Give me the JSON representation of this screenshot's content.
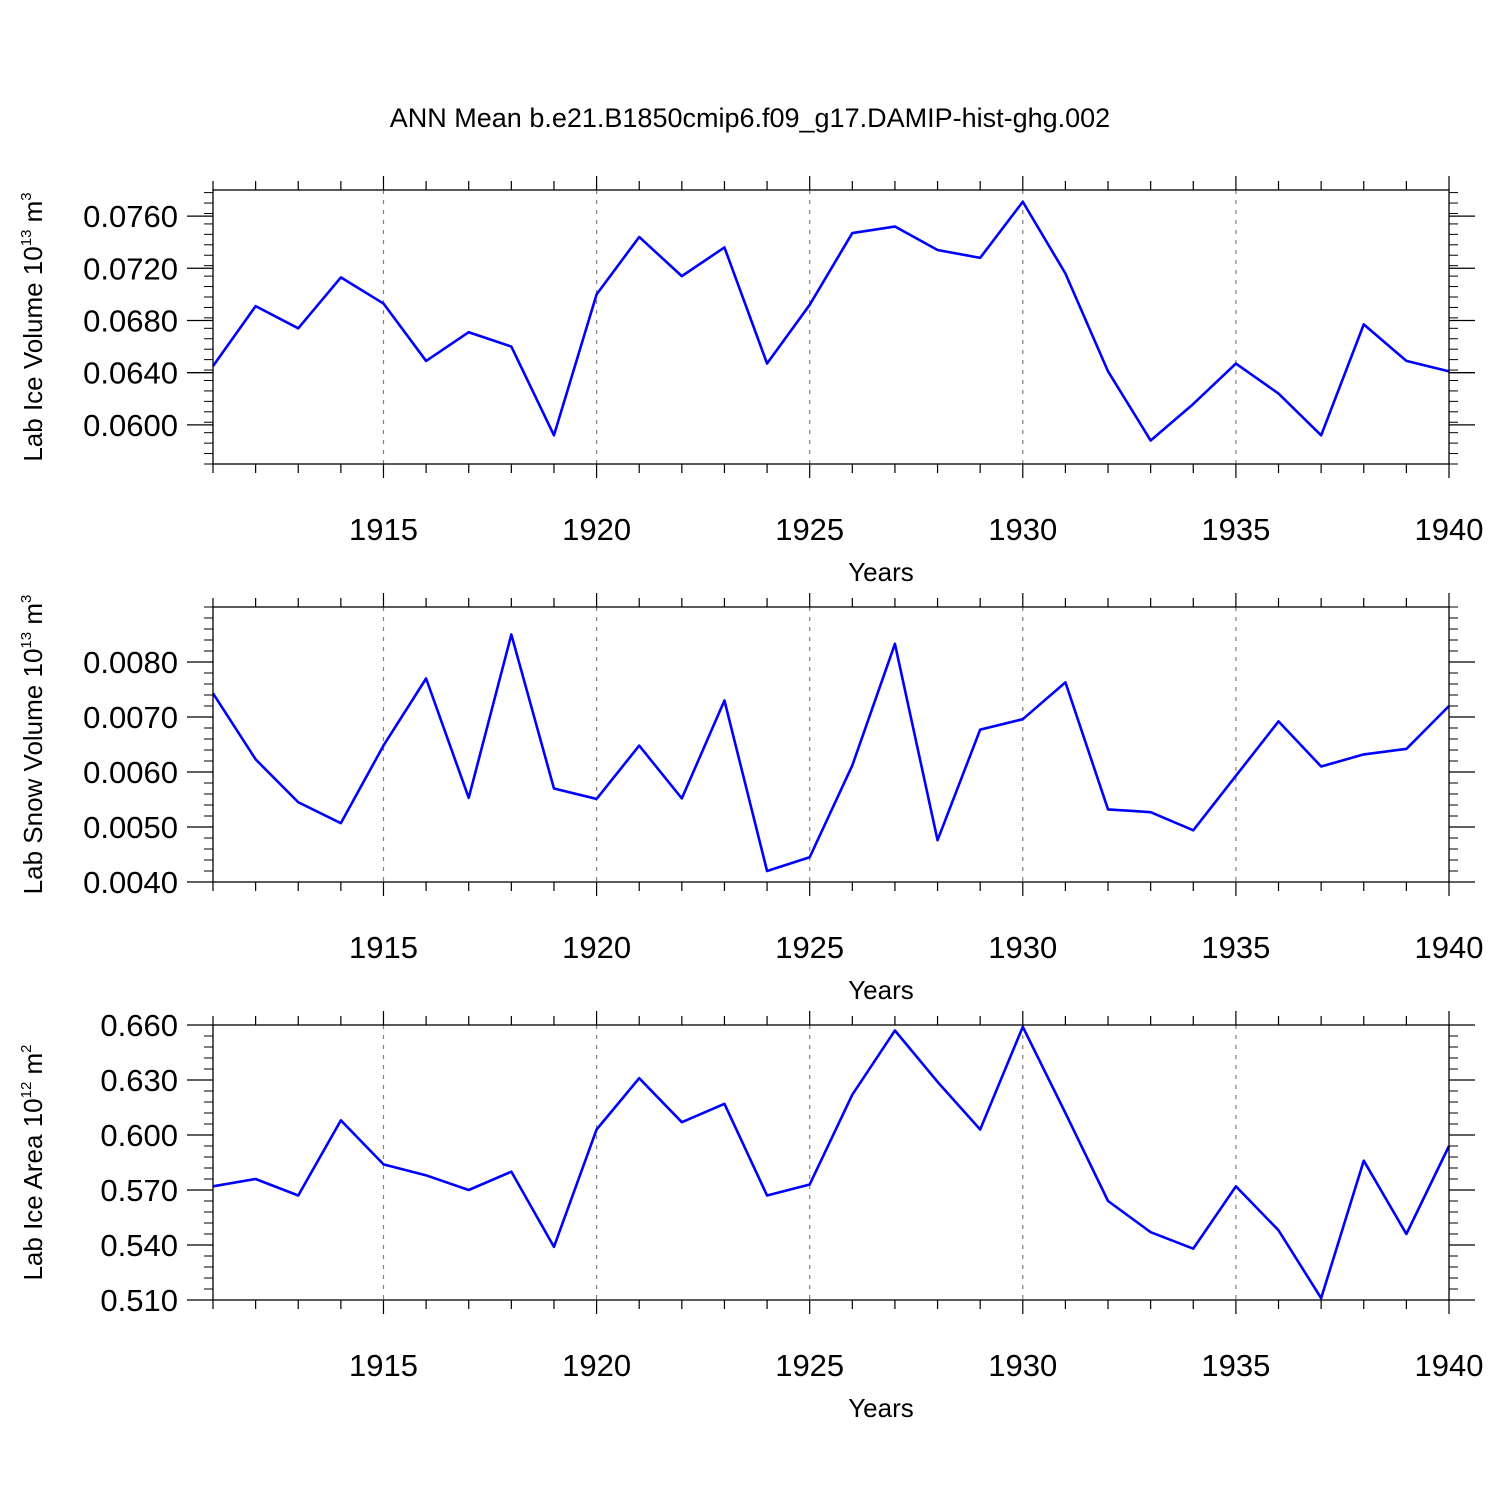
{
  "title": "ANN Mean b.e21.B1850cmip6.f09_g17.DAMIP-hist-ghg.002",
  "colors": {
    "line": "#0000ff",
    "axes": "#000000",
    "grid": "#808080"
  },
  "chart_data": [
    {
      "type": "line",
      "ylabel": "Lab Ice Volume",
      "ylabel_unit": "10",
      "ylabel_unit_exp": "13",
      "ylabel_unit_suffix": "m",
      "ylabel_unit_suffix_exp": "3",
      "xlabel": "Years",
      "xlim": [
        1911,
        1940
      ],
      "ylim": [
        0.057,
        0.078
      ],
      "yticks": [
        0.06,
        0.064,
        0.068,
        0.072,
        0.076
      ],
      "ytick_labels": [
        "0.0600",
        "0.0640",
        "0.0680",
        "0.0720",
        "0.0760"
      ],
      "yminor_step": 0.0008,
      "xticks": [
        1915,
        1920,
        1925,
        1930,
        1935,
        1940
      ],
      "xtick_labels": [
        "1915",
        "1920",
        "1925",
        "1930",
        "1935",
        "1940"
      ],
      "x": [
        1911,
        1912,
        1913,
        1914,
        1915,
        1916,
        1917,
        1918,
        1919,
        1920,
        1921,
        1922,
        1923,
        1924,
        1925,
        1926,
        1927,
        1928,
        1929,
        1930,
        1931,
        1932,
        1933,
        1934,
        1935,
        1936,
        1937,
        1938,
        1939,
        1940
      ],
      "series": [
        {
          "values": [
            0.0645,
            0.0691,
            0.0674,
            0.0713,
            0.0693,
            0.0649,
            0.0671,
            0.066,
            0.0592,
            0.07,
            0.0744,
            0.0714,
            0.0736,
            0.0647,
            0.0692,
            0.0747,
            0.0752,
            0.0734,
            0.0728,
            0.0771,
            0.0716,
            0.0641,
            0.0588,
            0.0616,
            0.0647,
            0.0624,
            0.0592,
            0.0677,
            0.0649,
            0.0641
          ]
        }
      ],
      "grid": "vertical-dashed"
    },
    {
      "type": "line",
      "ylabel": "Lab Snow Volume",
      "ylabel_unit": "10",
      "ylabel_unit_exp": "13",
      "ylabel_unit_suffix": "m",
      "ylabel_unit_suffix_exp": "3",
      "xlabel": "Years",
      "xlim": [
        1911,
        1940
      ],
      "ylim": [
        0.004,
        0.009
      ],
      "yticks": [
        0.004,
        0.005,
        0.006,
        0.007,
        0.008
      ],
      "ytick_labels": [
        "0.0040",
        "0.0050",
        "0.0060",
        "0.0070",
        "0.0080"
      ],
      "yminor_step": 0.0002,
      "xticks": [
        1915,
        1920,
        1925,
        1930,
        1935,
        1940
      ],
      "xtick_labels": [
        "1915",
        "1920",
        "1925",
        "1930",
        "1935",
        "1940"
      ],
      "x": [
        1911,
        1912,
        1913,
        1914,
        1915,
        1916,
        1917,
        1918,
        1919,
        1920,
        1921,
        1922,
        1923,
        1924,
        1925,
        1926,
        1927,
        1928,
        1929,
        1930,
        1931,
        1932,
        1933,
        1934,
        1935,
        1936,
        1937,
        1938,
        1939,
        1940
      ],
      "series": [
        {
          "values": [
            0.00743,
            0.00623,
            0.00545,
            0.00507,
            0.00648,
            0.0077,
            0.00553,
            0.0085,
            0.0057,
            0.00551,
            0.00648,
            0.00552,
            0.0073,
            0.0042,
            0.00445,
            0.00612,
            0.00833,
            0.00476,
            0.00677,
            0.00696,
            0.00763,
            0.00532,
            0.00527,
            0.00494,
            0.00593,
            0.00692,
            0.0061,
            0.00632,
            0.00642,
            0.0072
          ]
        }
      ],
      "grid": "vertical-dashed"
    },
    {
      "type": "line",
      "ylabel": "Lab Ice Area",
      "ylabel_unit": "10",
      "ylabel_unit_exp": "12",
      "ylabel_unit_suffix": "m",
      "ylabel_unit_suffix_exp": "2",
      "xlabel": "Years",
      "xlim": [
        1911,
        1940
      ],
      "ylim": [
        0.51,
        0.66
      ],
      "yticks": [
        0.51,
        0.54,
        0.57,
        0.6,
        0.63,
        0.66
      ],
      "ytick_labels": [
        "0.510",
        "0.540",
        "0.570",
        "0.600",
        "0.630",
        "0.660"
      ],
      "yminor_step": 0.006,
      "xticks": [
        1915,
        1920,
        1925,
        1930,
        1935,
        1940
      ],
      "xtick_labels": [
        "1915",
        "1920",
        "1925",
        "1930",
        "1935",
        "1940"
      ],
      "x": [
        1911,
        1912,
        1913,
        1914,
        1915,
        1916,
        1917,
        1918,
        1919,
        1920,
        1921,
        1922,
        1923,
        1924,
        1925,
        1926,
        1927,
        1928,
        1929,
        1930,
        1931,
        1932,
        1933,
        1934,
        1935,
        1936,
        1937,
        1938,
        1939,
        1940
      ],
      "series": [
        {
          "values": [
            0.572,
            0.576,
            0.567,
            0.608,
            0.584,
            0.578,
            0.57,
            0.58,
            0.539,
            0.603,
            0.631,
            0.607,
            0.617,
            0.567,
            0.573,
            0.622,
            0.657,
            0.629,
            0.603,
            0.659,
            0.612,
            0.564,
            0.547,
            0.538,
            0.572,
            0.548,
            0.511,
            0.586,
            0.546,
            0.594
          ]
        }
      ],
      "grid": "vertical-dashed"
    }
  ]
}
